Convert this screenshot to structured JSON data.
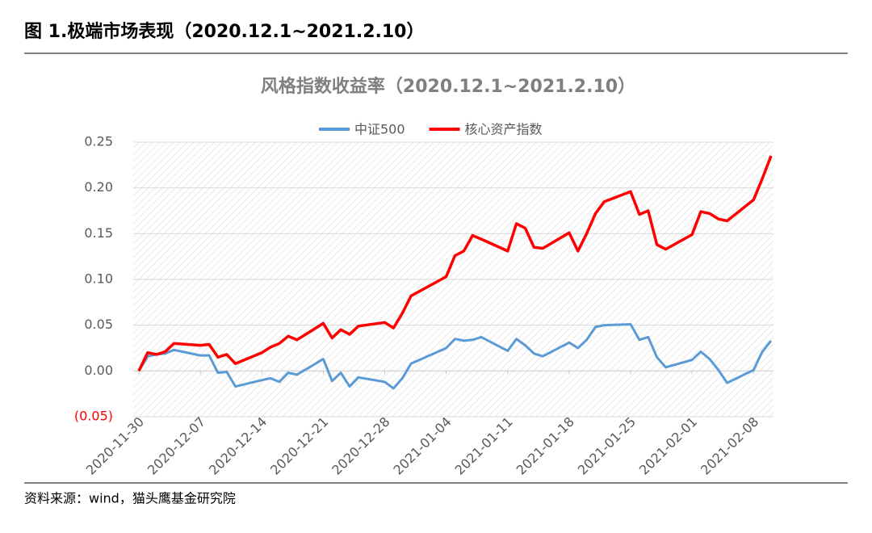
{
  "header": {
    "title": "图 1.极端市场表现（2020.12.1~2021.2.10）"
  },
  "footer": {
    "source": "资料来源：wind，猫头鹰基金研究院"
  },
  "chart_data": {
    "type": "line",
    "title": "风格指数收益率（2020.12.1~2021.2.10）",
    "x": [
      "2020-11-30",
      "2020-12-01",
      "2020-12-02",
      "2020-12-03",
      "2020-12-04",
      "2020-12-07",
      "2020-12-08",
      "2020-12-09",
      "2020-12-10",
      "2020-12-11",
      "2020-12-14",
      "2020-12-15",
      "2020-12-16",
      "2020-12-17",
      "2020-12-18",
      "2020-12-21",
      "2020-12-22",
      "2020-12-23",
      "2020-12-24",
      "2020-12-25",
      "2020-12-28",
      "2020-12-29",
      "2020-12-30",
      "2020-12-31",
      "2021-01-04",
      "2021-01-05",
      "2021-01-06",
      "2021-01-07",
      "2021-01-08",
      "2021-01-11",
      "2021-01-12",
      "2021-01-13",
      "2021-01-14",
      "2021-01-15",
      "2021-01-18",
      "2021-01-19",
      "2021-01-20",
      "2021-01-21",
      "2021-01-22",
      "2021-01-25",
      "2021-01-26",
      "2021-01-27",
      "2021-01-28",
      "2021-01-29",
      "2021-02-01",
      "2021-02-02",
      "2021-02-03",
      "2021-02-04",
      "2021-02-05",
      "2021-02-08",
      "2021-02-09",
      "2021-02-10"
    ],
    "series": [
      {
        "name": "中证500",
        "color": "#5b9bd5",
        "values": [
          0,
          0.016,
          0.018,
          0.019,
          0.023,
          0.017,
          0.017,
          -0.002,
          -0.001,
          -0.017,
          -0.01,
          -0.008,
          -0.012,
          -0.002,
          -0.004,
          0.013,
          -0.011,
          -0.002,
          -0.017,
          -0.007,
          -0.012,
          -0.019,
          -0.008,
          0.008,
          0.025,
          0.035,
          0.033,
          0.034,
          0.037,
          0.022,
          0.035,
          0.028,
          0.019,
          0.016,
          0.031,
          0.025,
          0.034,
          0.048,
          0.05,
          0.051,
          0.034,
          0.037,
          0.015,
          0.004,
          0.012,
          0.021,
          0.013,
          0.001,
          -0.013,
          0.001,
          0.021,
          0.033
        ]
      },
      {
        "name": "核心资产指数",
        "color": "#ff0000",
        "values": [
          0,
          0.02,
          0.018,
          0.021,
          0.03,
          0.028,
          0.029,
          0.015,
          0.018,
          0.008,
          0.02,
          0.026,
          0.03,
          0.038,
          0.034,
          0.052,
          0.036,
          0.045,
          0.04,
          0.049,
          0.053,
          0.047,
          0.063,
          0.082,
          0.103,
          0.126,
          0.131,
          0.148,
          0.144,
          0.131,
          0.161,
          0.156,
          0.135,
          0.134,
          0.151,
          0.131,
          0.15,
          0.172,
          0.185,
          0.196,
          0.171,
          0.175,
          0.138,
          0.133,
          0.149,
          0.174,
          0.172,
          0.166,
          0.164,
          0.187,
          0.21,
          0.235
        ]
      }
    ],
    "xlim": [
      "2020-11-30",
      "2021-02-10"
    ],
    "xticks": [
      "2020-11-30",
      "2020-12-07",
      "2020-12-14",
      "2020-12-21",
      "2020-12-28",
      "2021-01-04",
      "2021-01-11",
      "2021-01-18",
      "2021-01-25",
      "2021-02-01",
      "2021-02-08"
    ],
    "ylim": [
      -0.05,
      0.25
    ],
    "yticks": [
      {
        "value": -0.05,
        "label": "(0.05)"
      },
      {
        "value": 0,
        "label": "0.00"
      },
      0.05,
      {
        "value": 0.1,
        "label": "0.10"
      },
      0.15,
      {
        "value": 0.2,
        "label": "0.20"
      },
      0.25
    ],
    "grid": true,
    "legend": "top",
    "negative_tick_color": "#ff0000"
  }
}
